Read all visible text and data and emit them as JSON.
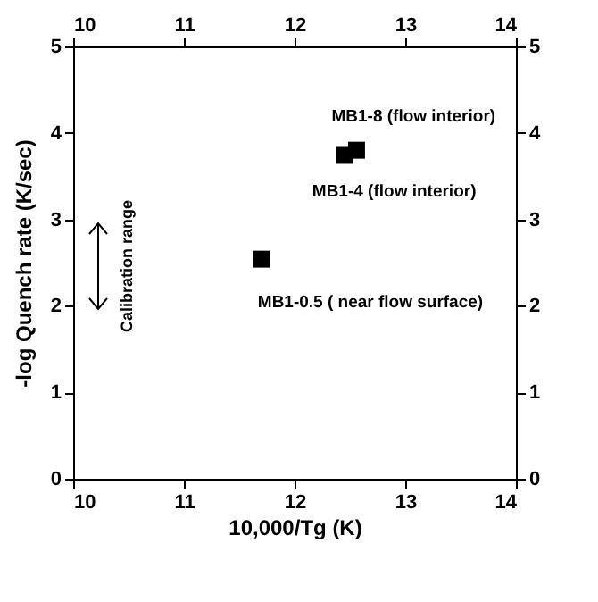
{
  "chart_data": {
    "type": "scatter",
    "xlabel": "10,000/Tg (K)",
    "ylabel": "-log Quench rate (K/sec)",
    "x": [
      11.7,
      12.45,
      12.56
    ],
    "series": [
      {
        "color": "#000000",
        "values": [
          2.54,
          3.74,
          3.8
        ]
      }
    ],
    "marker": "square",
    "xlim": [
      10,
      14
    ],
    "xticks": [
      10,
      11,
      12,
      13,
      14
    ],
    "x2lim": [
      10,
      14
    ],
    "x2ticks": [
      10,
      11,
      12,
      13,
      14
    ],
    "ylim": [
      0,
      5
    ],
    "yticks": [
      0,
      1,
      2,
      3,
      4,
      5
    ],
    "y2lim": [
      0,
      5
    ],
    "y2ticks": [
      0,
      1,
      2,
      3,
      4,
      5
    ],
    "annotations": [
      {
        "text": "MB1-8 (flow interior)",
        "x": 12.56,
        "y": 3.8
      },
      {
        "text": "MB1-4 (flow interior)",
        "x": 12.45,
        "y": 3.74
      },
      {
        "text": "MB1-0.5 ( near flow surface)",
        "x": 11.7,
        "y": 2.54
      },
      "Calibration range"
    ],
    "grid": false,
    "legend": false
  }
}
